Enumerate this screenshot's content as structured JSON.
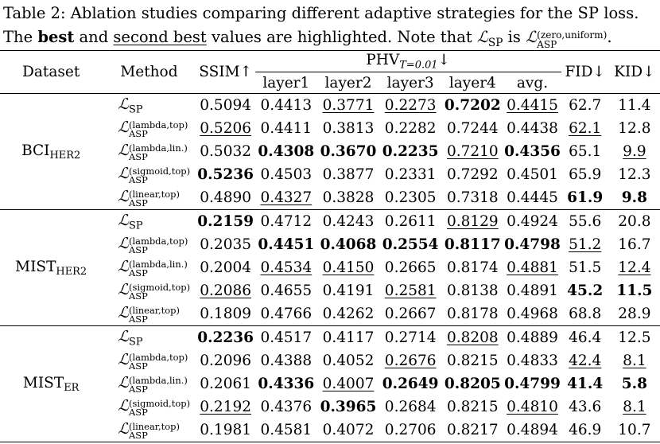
{
  "caption": {
    "line1": "Table 2: Ablation studies comparing different adaptive strategies for the SP loss.",
    "line2_a": "The ",
    "line2_best": "best",
    "line2_b": " and ",
    "line2_second": "second best",
    "line2_c": " values are highlighted. Note that ",
    "line2_lhs_sub": "SP",
    "line2_is": " is ",
    "line2_rhs_sup": "(zero,uniform)",
    "line2_rhs_sub": "ASP",
    "line2_end": "."
  },
  "headers": {
    "dataset": "Dataset",
    "method": "Method",
    "ssim": "SSIM↑",
    "phv": "PHV",
    "phv_sub": "T=0.01",
    "phv_arrow": "↓",
    "layer1": "layer1",
    "layer2": "layer2",
    "layer3": "layer3",
    "layer4": "layer4",
    "avg": "avg.",
    "fid": "FID↓",
    "kid": "KID↓"
  },
  "script_L": "ℒ",
  "groups": [
    {
      "name": "BCI",
      "name_sub": "HER2",
      "rows": [
        {
          "sup": "",
          "sub": "SP",
          "ssim": "0.5094",
          "l1": "0.4413",
          "l2": "0.3771",
          "l3": "0.2273",
          "l4": "0.7202",
          "avg": "0.4415",
          "fid": "62.7",
          "kid": "11.4"
        },
        {
          "sup": "(lambda,top)",
          "sub": "ASP",
          "ssim": "0.5206",
          "l1": "0.4411",
          "l2": "0.3813",
          "l3": "0.2282",
          "l4": "0.7244",
          "avg": "0.4438",
          "fid": "62.1",
          "kid": "12.8"
        },
        {
          "sup": "(lambda,lin.)",
          "sub": "ASP",
          "ssim": "0.5032",
          "l1": "0.4308",
          "l2": "0.3670",
          "l3": "0.2235",
          "l4": "0.7210",
          "avg": "0.4356",
          "fid": "65.1",
          "kid": "9.9"
        },
        {
          "sup": "(sigmoid,top)",
          "sub": "ASP",
          "ssim": "0.5236",
          "l1": "0.4503",
          "l2": "0.3877",
          "l3": "0.2331",
          "l4": "0.7292",
          "avg": "0.4501",
          "fid": "65.9",
          "kid": "12.3"
        },
        {
          "sup": "(linear,top)",
          "sub": "ASP",
          "ssim": "0.4890",
          "l1": "0.4327",
          "l2": "0.3828",
          "l3": "0.2305",
          "l4": "0.7318",
          "avg": "0.4445",
          "fid": "61.9",
          "kid": "9.8"
        }
      ]
    },
    {
      "name": "MIST",
      "name_sub": "HER2",
      "rows": [
        {
          "sup": "",
          "sub": "SP",
          "ssim": "0.2159",
          "l1": "0.4712",
          "l2": "0.4243",
          "l3": "0.2611",
          "l4": "0.8129",
          "avg": "0.4924",
          "fid": "55.6",
          "kid": "20.8"
        },
        {
          "sup": "(lambda,top)",
          "sub": "ASP",
          "ssim": "0.2035",
          "l1": "0.4451",
          "l2": "0.4068",
          "l3": "0.2554",
          "l4": "0.8117",
          "avg": "0.4798",
          "fid": "51.2",
          "kid": "16.7"
        },
        {
          "sup": "(lambda,lin.)",
          "sub": "ASP",
          "ssim": "0.2004",
          "l1": "0.4534",
          "l2": "0.4150",
          "l3": "0.2665",
          "l4": "0.8174",
          "avg": "0.4881",
          "fid": "51.5",
          "kid": "12.4"
        },
        {
          "sup": "(sigmoid,top)",
          "sub": "ASP",
          "ssim": "0.2086",
          "l1": "0.4655",
          "l2": "0.4191",
          "l3": "0.2581",
          "l4": "0.8138",
          "avg": "0.4891",
          "fid": "45.2",
          "kid": "11.5"
        },
        {
          "sup": "(linear,top)",
          "sub": "ASP",
          "ssim": "0.1809",
          "l1": "0.4766",
          "l2": "0.4262",
          "l3": "0.2667",
          "l4": "0.8178",
          "avg": "0.4968",
          "fid": "68.8",
          "kid": "28.9"
        }
      ]
    },
    {
      "name": "MIST",
      "name_sub": "ER",
      "rows": [
        {
          "sup": "",
          "sub": "SP",
          "ssim": "0.2236",
          "l1": "0.4517",
          "l2": "0.4117",
          "l3": "0.2714",
          "l4": "0.8208",
          "avg": "0.4889",
          "fid": "46.4",
          "kid": "12.5"
        },
        {
          "sup": "(lambda,top)",
          "sub": "ASP",
          "ssim": "0.2096",
          "l1": "0.4388",
          "l2": "0.4052",
          "l3": "0.2676",
          "l4": "0.8215",
          "avg": "0.4833",
          "fid": "42.4",
          "kid": "8.1"
        },
        {
          "sup": "(lambda,lin.)",
          "sub": "ASP",
          "ssim": "0.2061",
          "l1": "0.4336",
          "l2": "0.4007",
          "l3": "0.2649",
          "l4": "0.8205",
          "avg": "0.4799",
          "fid": "41.4",
          "kid": "5.8"
        },
        {
          "sup": "(sigmoid,top)",
          "sub": "ASP",
          "ssim": "0.2192",
          "l1": "0.4376",
          "l2": "0.3965",
          "l3": "0.2684",
          "l4": "0.8215",
          "avg": "0.4810",
          "fid": "43.6",
          "kid": "8.1"
        },
        {
          "sup": "(linear,top)",
          "sub": "ASP",
          "ssim": "0.1981",
          "l1": "0.4581",
          "l2": "0.4072",
          "l3": "0.2706",
          "l4": "0.8217",
          "avg": "0.4894",
          "fid": "46.9",
          "kid": "10.7"
        }
      ]
    }
  ],
  "highlights": {
    "bold": [
      "0-0-l4",
      "0-1-",
      "0-2-l1",
      "0-2-l2",
      "0-2-l3",
      "0-2-avg",
      "0-3-ssim",
      "0-4-fid",
      "0-4-kid",
      "1-0-ssim",
      "1-1-l1",
      "1-1-l2",
      "1-1-l3",
      "1-1-l4",
      "1-1-avg",
      "1-3-fid",
      "1-3-kid",
      "2-0-ssim",
      "2-2-l1",
      "2-2-l3",
      "2-2-l4",
      "2-2-avg",
      "2-2-fid",
      "2-2-kid",
      "2-3-l2"
    ],
    "underline": [
      "0-0-l2",
      "0-0-l3",
      "0-0-avg",
      "0-1-ssim",
      "0-1-fid",
      "0-2-l4",
      "0-2-kid",
      "0-4-l1",
      "1-0-l4",
      "1-1-fid",
      "1-2-l1",
      "1-2-l2",
      "1-2-avg",
      "1-2-kid",
      "1-3-ssim",
      "1-3-l3",
      "2-0-l4",
      "2-1-l3",
      "2-1-fid",
      "2-1-kid",
      "2-2-l2",
      "2-3-ssim",
      "2-3-avg",
      "2-3-kid"
    ]
  }
}
